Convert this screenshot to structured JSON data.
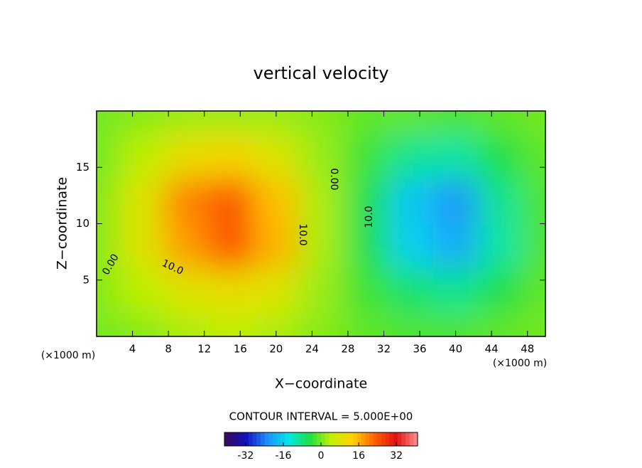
{
  "chart_data": {
    "type": "contour",
    "title": "vertical velocity",
    "xlabel": "X−coordinate",
    "ylabel": "Z−coordinate",
    "unit_labels": [
      "(×1000 m)",
      "(×1000 m)"
    ],
    "annotation": "CONTOUR INTERVAL = 5.000E+00",
    "contour_labels": [
      "0.00",
      "10.0",
      "10.0",
      "0.00",
      "10.0"
    ],
    "xlim": [
      0,
      50
    ],
    "ylim": [
      0,
      20
    ],
    "xticks": [
      4,
      8,
      12,
      16,
      20,
      24,
      28,
      32,
      36,
      40,
      44,
      48
    ],
    "yticks": [
      5,
      10,
      15
    ],
    "x": [
      0,
      5,
      10,
      15,
      20,
      25,
      30,
      35,
      40,
      45,
      50
    ],
    "y": [
      0,
      4,
      8,
      12,
      16,
      20
    ],
    "z": [
      [
        0,
        1,
        3,
        4,
        3,
        1,
        -1,
        -2,
        -2,
        -1,
        0
      ],
      [
        1,
        4,
        8,
        10,
        8,
        2,
        -3,
        -7,
        -9,
        -5,
        -1
      ],
      [
        1,
        8,
        18,
        24,
        16,
        3,
        -5,
        -16,
        -20,
        -10,
        -2
      ],
      [
        1,
        8,
        20,
        24,
        15,
        3,
        -5,
        -17,
        -22,
        -9,
        -2
      ],
      [
        0,
        4,
        10,
        12,
        8,
        2,
        -3,
        -9,
        -10,
        -5,
        -1
      ],
      [
        0,
        1,
        2,
        2,
        2,
        1,
        -1,
        -1,
        -2,
        -1,
        0
      ]
    ],
    "colorbar": {
      "lim": [
        -41,
        41
      ],
      "ticks": [
        -32,
        -16,
        0,
        16,
        32
      ]
    },
    "colormap": [
      "#3a0a5a",
      "#1010c0",
      "#1e90ff",
      "#00e8e8",
      "#20e040",
      "#c8f000",
      "#ffd000",
      "#ff6000",
      "#e01010",
      "#ff9090"
    ]
  }
}
